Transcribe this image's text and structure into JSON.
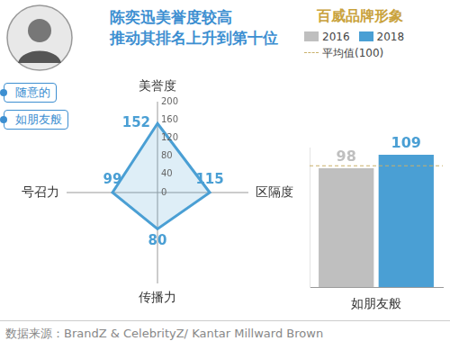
{
  "header": {
    "title": [
      "陈奕迅美誉度较高",
      "推动其排名上升到第十位"
    ],
    "tags": [
      "随意的",
      "如朋友般"
    ]
  },
  "chart_data": [
    {
      "type": "radar",
      "categories": [
        "美誉度",
        "区隔度",
        "传播力",
        "号召力"
      ],
      "values": [
        152,
        115,
        80,
        99
      ],
      "color": "#4a9fd4",
      "ylim": [
        0,
        200
      ],
      "yticks": [
        0,
        40,
        80,
        120,
        160,
        200
      ],
      "grid": false,
      "data_labels": true
    },
    {
      "type": "bar",
      "title": "百威品牌形象",
      "categories": [
        "如朋友般"
      ],
      "series": [
        {
          "name": "2016",
          "color": "#bfbfbf",
          "values": [
            98
          ]
        },
        {
          "name": "2018",
          "color": "#4a9fd4",
          "values": [
            109
          ]
        }
      ],
      "reference_line": {
        "value": 100,
        "label": "平均值(100)"
      },
      "ylim": [
        0,
        115
      ],
      "tick_labels": "x",
      "grid": false,
      "data_labels": true,
      "legend": "top"
    }
  ],
  "source": "数据来源：BrandZ & CelebrityZ/ Kantar Millward Brown"
}
